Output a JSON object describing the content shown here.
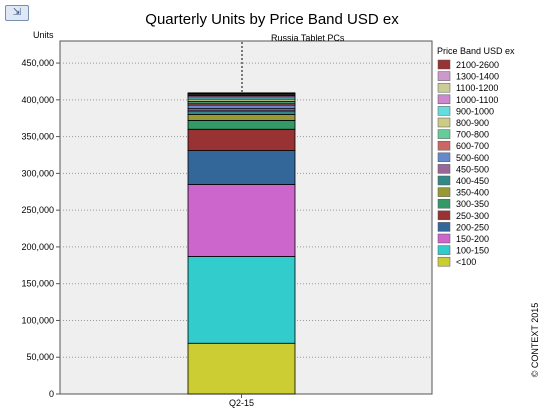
{
  "toolbar": {
    "export_icon": "export-chart-icon",
    "export_glyph": "⇲"
  },
  "chart_data": {
    "type": "bar",
    "stacked": true,
    "title": "Quarterly Units by Price Band USD ex",
    "subtitle": "Russia  Tablet PCs",
    "ylabel": "Units",
    "xlabel": "",
    "categories": [
      "Q2-15"
    ],
    "ylim": [
      0,
      480000
    ],
    "yticks": [
      0,
      50000,
      100000,
      150000,
      200000,
      250000,
      300000,
      350000,
      400000,
      450000
    ],
    "ytick_labels": [
      "0",
      "50,000",
      "100,000",
      "150,000",
      "200,000",
      "250,000",
      "300,000",
      "350,000",
      "400,000",
      "450,000"
    ],
    "grid": true,
    "legend_position": "right",
    "legend_title": "Price Band USD ex",
    "series": [
      {
        "name": "<100",
        "color": "#cccc33",
        "values": [
          69000
        ]
      },
      {
        "name": "100-150",
        "color": "#33cccc",
        "values": [
          118000
        ]
      },
      {
        "name": "150-200",
        "color": "#cc66cc",
        "values": [
          98000
        ]
      },
      {
        "name": "200-250",
        "color": "#336699",
        "values": [
          46000
        ]
      },
      {
        "name": "250-300",
        "color": "#993333",
        "values": [
          29000
        ]
      },
      {
        "name": "300-350",
        "color": "#339966",
        "values": [
          12000
        ]
      },
      {
        "name": "350-400",
        "color": "#999933",
        "values": [
          8000
        ]
      },
      {
        "name": "400-450",
        "color": "#338888",
        "values": [
          5000
        ]
      },
      {
        "name": "450-500",
        "color": "#996699",
        "values": [
          3000
        ]
      },
      {
        "name": "500-600",
        "color": "#6688cc",
        "values": [
          5000
        ]
      },
      {
        "name": "600-700",
        "color": "#cc6666",
        "values": [
          2500
        ]
      },
      {
        "name": "700-800",
        "color": "#66cc99",
        "values": [
          2500
        ]
      },
      {
        "name": "800-900",
        "color": "#cccc88",
        "values": [
          3000
        ]
      },
      {
        "name": "900-1000",
        "color": "#66dddd",
        "values": [
          3000
        ]
      },
      {
        "name": "1000-1100",
        "color": "#cc88cc",
        "values": [
          2000
        ]
      },
      {
        "name": "1100-1200",
        "color": "#cccc99",
        "values": [
          1500
        ]
      },
      {
        "name": "1300-1400",
        "color": "#cc99cc",
        "values": [
          1000
        ]
      },
      {
        "name": "2100-2600",
        "color": "#993333",
        "values": [
          1000
        ]
      }
    ]
  },
  "copyright": "© CONTEXT 2015"
}
